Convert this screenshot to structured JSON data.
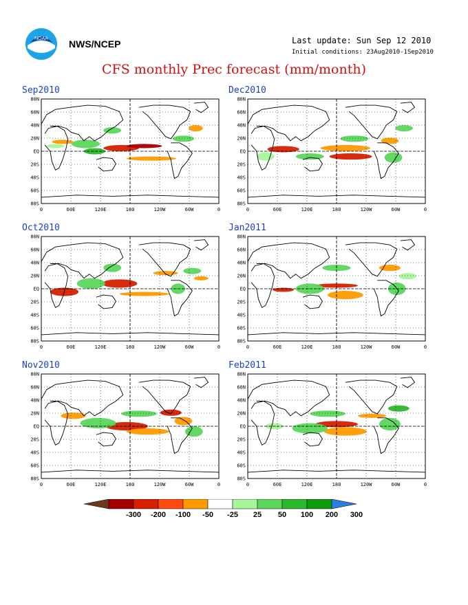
{
  "header": {
    "org": "NWS/NCEP",
    "last_update": "Last update: Sun Sep 12 2010",
    "initial_conditions": "Initial conditions: 23Aug2010-1Sep2010",
    "title": "CFS monthly Prec forecast (mm/month)",
    "logo_icon": "noaa-logo-icon"
  },
  "map_axes": {
    "lat_ticks": [
      "80N",
      "60N",
      "40N",
      "20N",
      "EQ",
      "20S",
      "40S",
      "60S",
      "80S"
    ],
    "lon_ticks": [
      "0",
      "60E",
      "120E",
      "180",
      "120W",
      "60W",
      "0"
    ]
  },
  "panels": [
    {
      "label": "Sep2010"
    },
    {
      "label": "Dec2010"
    },
    {
      "label": "Oct2010"
    },
    {
      "label": "Jan2011"
    },
    {
      "label": "Nov2010"
    },
    {
      "label": "Feb2011"
    }
  ],
  "colorbar": {
    "labels": [
      "-300",
      "-200",
      "-100",
      "-50",
      "-25",
      "25",
      "50",
      "100",
      "200",
      "300"
    ],
    "colors": [
      "#6b3a1e",
      "#a50000",
      "#d42000",
      "#ff4a10",
      "#ff9a00",
      "#ffffff",
      "#a8f59a",
      "#5cd65c",
      "#2cb82c",
      "#0e9a0e",
      "#2a7fe0"
    ]
  },
  "colors": {
    "title": "#d01010",
    "panel_label": "#1a3fc8",
    "orange": "#ff9a00",
    "red": "#d42000",
    "dark_red": "#a50000",
    "green_light": "#a8f59a",
    "green": "#5cd65c",
    "green_dark": "#2cb82c"
  }
}
